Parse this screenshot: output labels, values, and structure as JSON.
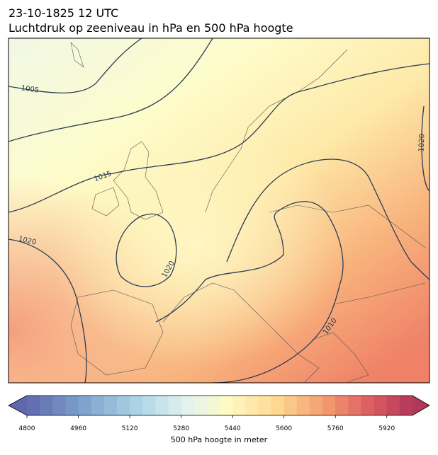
{
  "map": {
    "title": "23-10-1825 12 UTC",
    "subtitle": "Luchtdruk op zeeniveau in hPa en 500 hPa hoogte",
    "contour_labels": [
      "1005",
      "1020",
      "1015",
      "1020",
      "1020",
      "1010"
    ],
    "colorbar": {
      "lim": [
        4800,
        6000
      ],
      "step": 40,
      "ticks": [
        4800,
        4960,
        5120,
        5280,
        5440,
        5600,
        5760,
        5920
      ],
      "label": "500 hPa hoogte in meter"
    }
  }
}
